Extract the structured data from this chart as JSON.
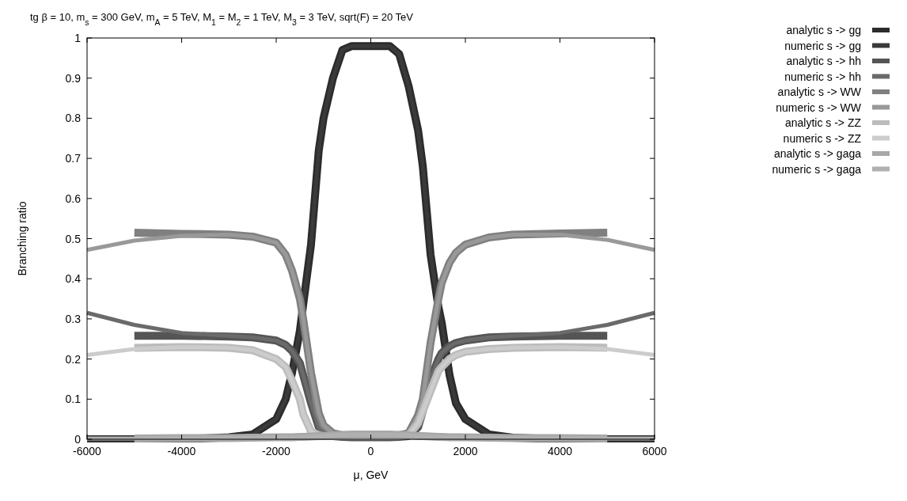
{
  "chart_data": {
    "type": "line",
    "title": "tg β = 10, m$_{s}$ = 300 GeV, m$_{A}$ = 5 TeV, M$_{1}$ = M$_{2}$ = 1 TeV, M$_{3}$ = 3 TeV, sqrt(F) = 20 TeV",
    "xlabel": "μ, GeV",
    "ylabel": "Branching ratio",
    "xlim": [
      -6000,
      6000
    ],
    "xticks": [
      -6000,
      -4000,
      -2000,
      0,
      2000,
      4000,
      6000
    ],
    "ylim": [
      0,
      1
    ],
    "yticks": [
      0,
      0.1,
      0.2,
      0.3,
      0.4,
      0.5,
      0.6,
      0.7,
      0.8,
      0.9,
      1
    ],
    "grid": false,
    "legend": "top right",
    "line_style": "solid",
    "series": [
      {
        "name": "analytic s -> gg",
        "color": "#2b2b2b",
        "x": [
          -6000,
          -5000,
          -4000,
          -3000,
          -2500,
          -2000,
          -1800,
          -1665,
          -1500,
          -1430,
          -1264,
          -1100,
          -1000,
          -800,
          -600,
          -400,
          0,
          400,
          600,
          800,
          1000,
          1100,
          1264,
          1430,
          1500,
          1665,
          1800,
          2000,
          2500,
          3000,
          4000,
          5000,
          6000
        ],
        "values": [
          0,
          0,
          0,
          0.005,
          0.012,
          0.05,
          0.1,
          0.166,
          0.27,
          0.335,
          0.485,
          0.72,
          0.8,
          0.9,
          0.97,
          0.98,
          0.98,
          0.98,
          0.96,
          0.88,
          0.77,
          0.68,
          0.46,
          0.33,
          0.29,
          0.16,
          0.09,
          0.05,
          0.012,
          0.004,
          0,
          0,
          0
        ]
      },
      {
        "name": "numeric s -> gg",
        "color": "#3a3a3a",
        "x": [
          -6000,
          -5000,
          -4000,
          -3000,
          -2500,
          -2000,
          -1800,
          -1665,
          -1500,
          -1430,
          -1264,
          -1100,
          -1000,
          -800,
          -600,
          -400,
          0,
          400,
          600,
          800,
          1000,
          1100,
          1264,
          1430,
          1500,
          1665,
          1800,
          2000,
          2500,
          3000,
          4000,
          5000,
          6000
        ],
        "values": [
          0,
          0,
          0,
          0.005,
          0.012,
          0.05,
          0.1,
          0.166,
          0.27,
          0.335,
          0.485,
          0.72,
          0.8,
          0.9,
          0.97,
          0.98,
          0.98,
          0.98,
          0.96,
          0.88,
          0.77,
          0.68,
          0.46,
          0.33,
          0.29,
          0.16,
          0.09,
          0.05,
          0.012,
          0.004,
          0,
          0,
          0
        ]
      },
      {
        "name": "analytic s -> hh",
        "color": "#555555",
        "x": [
          -5000,
          -4000,
          -3000,
          -2500,
          -2000,
          -1800,
          -1665,
          -1500,
          -1430,
          -1264,
          -1100,
          -1000,
          -800,
          -600,
          -400,
          0,
          400,
          600,
          800,
          1000,
          1100,
          1264,
          1430,
          1500,
          1665,
          1800,
          2000,
          2500,
          3000,
          4000,
          5000
        ],
        "values": [
          0.258,
          0.258,
          0.256,
          0.254,
          0.246,
          0.235,
          0.22,
          0.19,
          0.16,
          0.09,
          0.03,
          0.015,
          0.008,
          0.006,
          0.005,
          0.005,
          0.005,
          0.006,
          0.008,
          0.03,
          0.07,
          0.15,
          0.2,
          0.215,
          0.232,
          0.24,
          0.246,
          0.254,
          0.256,
          0.258,
          0.258
        ]
      },
      {
        "name": "numeric s -> hh",
        "color": "#6a6a6a",
        "x": [
          -6000,
          -5000,
          -4000,
          -3000,
          -2500,
          -2000,
          -1800,
          -1665,
          -1500,
          -1430,
          -1264,
          -1100,
          -1000,
          -800,
          -600,
          -400,
          0,
          400,
          600,
          800,
          1000,
          1100,
          1264,
          1430,
          1500,
          1665,
          1800,
          2000,
          2500,
          3000,
          4000,
          5000,
          6000
        ],
        "values": [
          0.315,
          0.285,
          0.265,
          0.258,
          0.254,
          0.246,
          0.235,
          0.22,
          0.19,
          0.16,
          0.09,
          0.03,
          0.015,
          0.008,
          0.006,
          0.005,
          0.005,
          0.005,
          0.006,
          0.008,
          0.03,
          0.07,
          0.15,
          0.2,
          0.215,
          0.232,
          0.24,
          0.246,
          0.254,
          0.258,
          0.265,
          0.285,
          0.315
        ]
      },
      {
        "name": "analytic s -> WW",
        "color": "#808080",
        "x": [
          -5000,
          -4000,
          -3000,
          -2500,
          -2000,
          -1800,
          -1665,
          -1500,
          -1430,
          -1264,
          -1100,
          -1000,
          -800,
          -600,
          -400,
          0,
          400,
          600,
          800,
          1000,
          1100,
          1264,
          1430,
          1500,
          1665,
          1800,
          2000,
          2500,
          3000,
          4000,
          5000
        ],
        "values": [
          0.515,
          0.512,
          0.51,
          0.505,
          0.49,
          0.46,
          0.42,
          0.35,
          0.3,
          0.166,
          0.065,
          0.035,
          0.015,
          0.01,
          0.01,
          0.01,
          0.01,
          0.01,
          0.015,
          0.06,
          0.1,
          0.24,
          0.35,
          0.39,
          0.44,
          0.465,
          0.485,
          0.503,
          0.51,
          0.513,
          0.515
        ]
      },
      {
        "name": "numeric s -> WW",
        "color": "#999999",
        "x": [
          -6000,
          -5000,
          -4000,
          -3000,
          -2500,
          -2000,
          -1800,
          -1665,
          -1500,
          -1430,
          -1264,
          -1100,
          -1000,
          -800,
          -600,
          -400,
          0,
          400,
          600,
          800,
          1000,
          1100,
          1264,
          1430,
          1500,
          1665,
          1800,
          2000,
          2500,
          3000,
          4000,
          5000,
          6000
        ],
        "values": [
          0.472,
          0.495,
          0.507,
          0.51,
          0.505,
          0.49,
          0.46,
          0.42,
          0.35,
          0.3,
          0.166,
          0.065,
          0.035,
          0.015,
          0.01,
          0.01,
          0.01,
          0.01,
          0.01,
          0.015,
          0.06,
          0.1,
          0.24,
          0.35,
          0.39,
          0.44,
          0.465,
          0.485,
          0.503,
          0.51,
          0.51,
          0.497,
          0.472
        ]
      },
      {
        "name": "analytic s -> ZZ",
        "color": "#bcbcbc",
        "x": [
          -5000,
          -4000,
          -3000,
          -2500,
          -2000,
          -1800,
          -1665,
          -1500,
          -1430,
          -1264,
          -1100,
          -1000,
          -800,
          -600,
          -400,
          0,
          400,
          600,
          800,
          1000,
          1100,
          1264,
          1430,
          1500,
          1665,
          1800,
          2000,
          2500,
          3000,
          4000,
          5000
        ],
        "values": [
          0.228,
          0.23,
          0.228,
          0.222,
          0.2,
          0.18,
          0.146,
          0.1,
          0.063,
          0.02,
          0.01,
          0.008,
          0.008,
          0.008,
          0.008,
          0.008,
          0.008,
          0.008,
          0.01,
          0.04,
          0.07,
          0.12,
          0.17,
          0.18,
          0.2,
          0.21,
          0.218,
          0.225,
          0.228,
          0.23,
          0.228
        ]
      },
      {
        "name": "numeric s -> ZZ",
        "color": "#cccccc",
        "x": [
          -6000,
          -5000,
          -4000,
          -3000,
          -2500,
          -2000,
          -1800,
          -1665,
          -1500,
          -1430,
          -1264,
          -1100,
          -1000,
          -800,
          -600,
          -400,
          0,
          400,
          600,
          800,
          1000,
          1100,
          1264,
          1430,
          1500,
          1665,
          1800,
          2000,
          2500,
          3000,
          4000,
          5000,
          6000
        ],
        "values": [
          0.21,
          0.225,
          0.23,
          0.228,
          0.222,
          0.2,
          0.18,
          0.146,
          0.1,
          0.063,
          0.02,
          0.01,
          0.008,
          0.008,
          0.008,
          0.008,
          0.008,
          0.008,
          0.008,
          0.01,
          0.04,
          0.07,
          0.12,
          0.17,
          0.18,
          0.2,
          0.21,
          0.218,
          0.225,
          0.228,
          0.23,
          0.225,
          0.21
        ]
      },
      {
        "name": "analytic s -> gaga",
        "color": "#a8a8a8",
        "x": [
          -5000,
          -4000,
          -3000,
          -2500,
          -2000,
          -1800,
          -1665,
          -1500,
          -1430,
          -1264,
          -1100,
          -1000,
          -800,
          -600,
          -400,
          0,
          400,
          600,
          800,
          1000,
          1100,
          1264,
          1430,
          1500,
          1665,
          1800,
          2000,
          2500,
          3000,
          4000,
          5000
        ],
        "values": [
          0.002,
          0.003,
          0.003,
          0.004,
          0.005,
          0.005,
          0.005,
          0.006,
          0.006,
          0.007,
          0.008,
          0.008,
          0.01,
          0.011,
          0.012,
          0.012,
          0.012,
          0.011,
          0.01,
          0.008,
          0.008,
          0.007,
          0.006,
          0.006,
          0.005,
          0.005,
          0.005,
          0.004,
          0.003,
          0.003,
          0.002
        ]
      },
      {
        "name": "numeric s -> gaga",
        "color": "#b0b0b0",
        "x": [
          -6000,
          -5000,
          -4000,
          -3000,
          -2500,
          -2000,
          -1800,
          -1665,
          -1500,
          -1430,
          -1264,
          -1100,
          -1000,
          -800,
          -600,
          -400,
          0,
          400,
          600,
          800,
          1000,
          1100,
          1264,
          1430,
          1500,
          1665,
          1800,
          2000,
          2500,
          3000,
          4000,
          5000,
          6000
        ],
        "values": [
          0.002,
          0.002,
          0.003,
          0.003,
          0.004,
          0.005,
          0.005,
          0.005,
          0.006,
          0.006,
          0.007,
          0.008,
          0.008,
          0.01,
          0.011,
          0.012,
          0.012,
          0.012,
          0.011,
          0.01,
          0.008,
          0.008,
          0.007,
          0.006,
          0.006,
          0.005,
          0.005,
          0.005,
          0.004,
          0.003,
          0.003,
          0.002,
          0.002
        ]
      }
    ]
  }
}
